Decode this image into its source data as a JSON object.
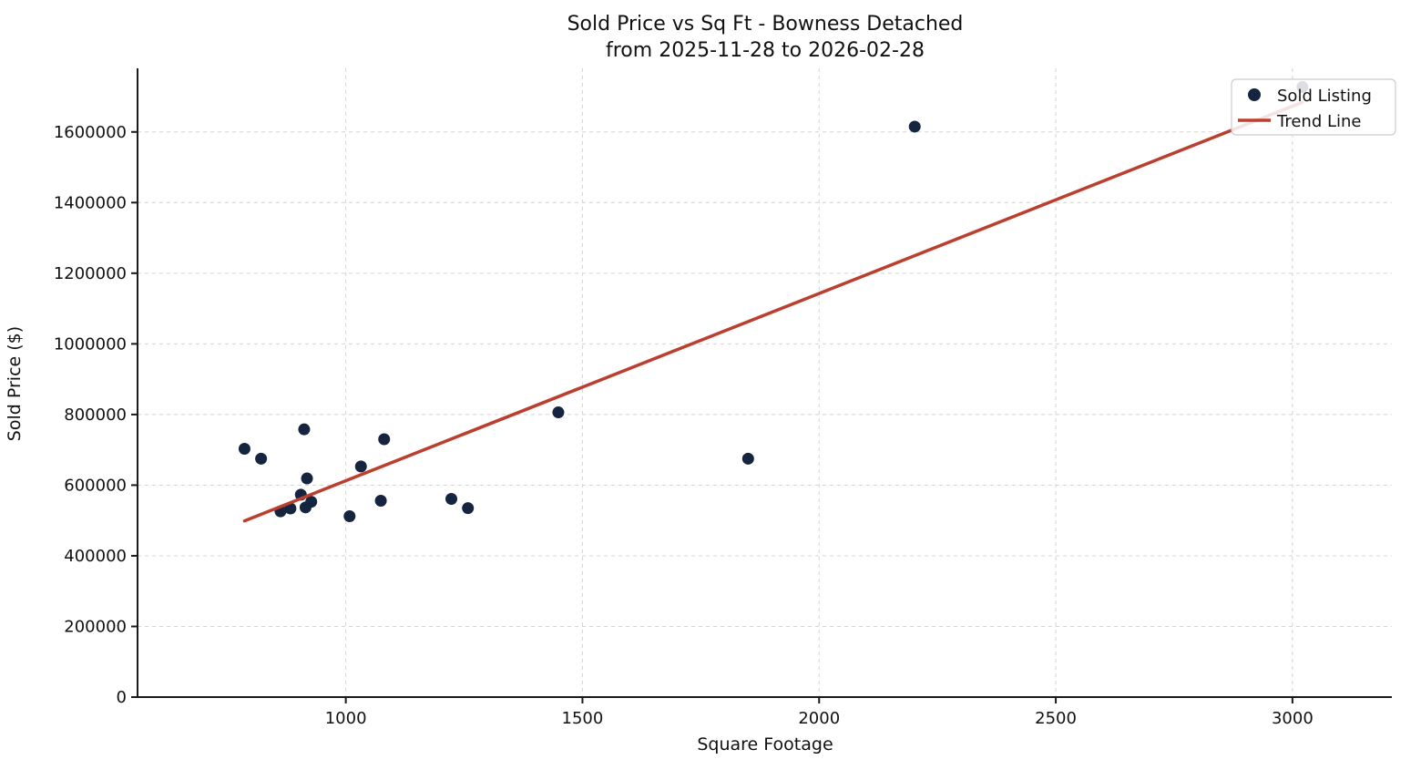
{
  "figure": {
    "title_line1": "Sold Price vs Sq Ft - Bowness Detached",
    "title_line2": "from 2025-11-28 to 2026-02-28"
  },
  "chart_data": {
    "type": "scatter",
    "title": "Sold Price vs Sq Ft - Bowness Detached",
    "subtitle": "from 2025-11-28 to 2026-02-28",
    "xlabel": "Square Footage",
    "ylabel": "Sold Price ($)",
    "xlim": [
      560,
      3210
    ],
    "ylim": [
      0,
      1780000
    ],
    "x_ticks": [
      1000,
      1500,
      2000,
      2500,
      3000
    ],
    "y_ticks": [
      0,
      200000,
      400000,
      600000,
      800000,
      1000000,
      1200000,
      1400000,
      1600000
    ],
    "grid": true,
    "grid_style": "dashed",
    "legend_position": "upper right",
    "series": [
      {
        "name": "Sold Listing",
        "kind": "scatter",
        "color": "#152540",
        "points": [
          [
            786,
            703000
          ],
          [
            821,
            675000
          ],
          [
            912,
            758000
          ],
          [
            918,
            619000
          ],
          [
            905,
            573000
          ],
          [
            927,
            553000
          ],
          [
            915,
            537000
          ],
          [
            883,
            534000
          ],
          [
            862,
            526000
          ],
          [
            1032,
            653000
          ],
          [
            1081,
            730000
          ],
          [
            1074,
            556000
          ],
          [
            1008,
            512000
          ],
          [
            1223,
            561000
          ],
          [
            1258,
            535000
          ],
          [
            1449,
            806000
          ],
          [
            1850,
            675000
          ],
          [
            2202,
            1615000
          ],
          [
            3021,
            1727000
          ]
        ]
      },
      {
        "name": "Trend Line",
        "kind": "line",
        "color": "#bc3e2e",
        "points": [
          [
            786,
            499000
          ],
          [
            3021,
            1684000
          ]
        ]
      }
    ],
    "legend_entries": [
      "Sold Listing",
      "Trend Line"
    ]
  },
  "colors": {
    "point": "#152540",
    "trend": "#bc3e2e",
    "grid": "#d4d4d4",
    "spine": "#1a1a1a",
    "legend_border": "#cccccc",
    "legend_bg": "#ffffff"
  }
}
